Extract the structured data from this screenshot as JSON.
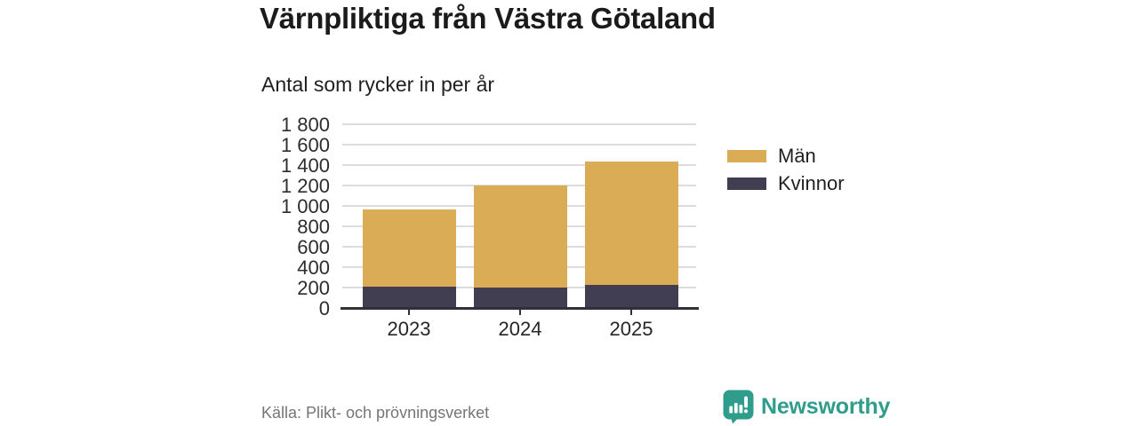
{
  "header": {
    "title": "Värnpliktiga från Västra Götaland",
    "subtitle": "Antal som rycker in per år"
  },
  "chart_data": {
    "type": "bar",
    "stacked": true,
    "title": "Värnpliktiga från Västra Götaland",
    "subtitle": "Antal som rycker in per år",
    "categories": [
      "2023",
      "2024",
      "2025"
    ],
    "series": [
      {
        "name": "Män",
        "color": "#D9AC55",
        "values": [
          760,
          995,
          1205
        ]
      },
      {
        "name": "Kvinnor",
        "color": "#403E50",
        "values": [
          215,
          210,
          235
        ]
      }
    ],
    "stack_bottom_to_top": [
      "Kvinnor",
      "Män"
    ],
    "totals": [
      975,
      1205,
      1440
    ],
    "xlabel": "",
    "ylabel": "",
    "ylim": [
      0,
      1800
    ],
    "ytick_step": 200,
    "ytick_labels": [
      "0",
      "200",
      "400",
      "600",
      "800",
      "1 000",
      "1 200",
      "1 400",
      "1 600",
      "1 800"
    ],
    "grid": "horizontal",
    "legend_position": "right"
  },
  "footer": {
    "source": "Källa: Plikt- och prövningsverket",
    "brand": "Newsworthy",
    "logo_icon": "bar-chart-speech-bubble-icon"
  },
  "colors": {
    "accent_gold": "#D9AC55",
    "accent_dark": "#403E50",
    "brand_teal": "#2F9C8C",
    "gridline": "#DCDCDC",
    "axis": "#302F3A",
    "source_text": "#767676"
  }
}
